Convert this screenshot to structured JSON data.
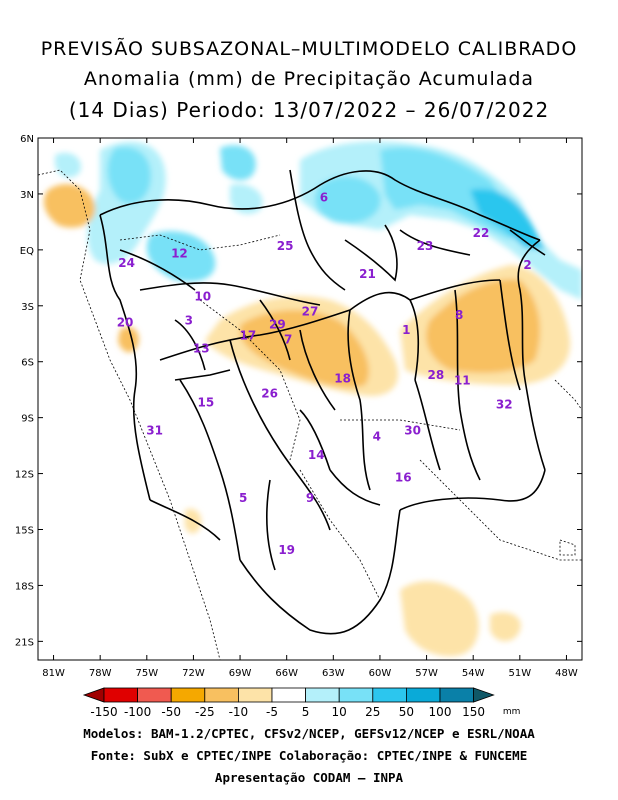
{
  "header": {
    "line1": "PREVISÃO SUBSAZONAL–MULTIMODELO CALIBRADO",
    "line2": "Anomalia (mm) de Precipitação Acumulada",
    "line3": "(14 Dias) Periodo: 13/07/2022 – 26/07/2022"
  },
  "map": {
    "lat_labels": [
      "6N",
      "3N",
      "EQ",
      "3S",
      "6S",
      "9S",
      "12S",
      "15S",
      "18S",
      "21S"
    ],
    "lon_labels": [
      "81W",
      "78W",
      "75W",
      "72W",
      "69W",
      "66W",
      "63W",
      "60W",
      "57W",
      "54W",
      "51W",
      "48W"
    ],
    "basin_labels": [
      {
        "id": "1",
        "lon": -58.3,
        "lat": -4.3
      },
      {
        "id": "2",
        "lon": -50.5,
        "lat": -0.8
      },
      {
        "id": "3",
        "lon": -72.3,
        "lat": -3.8
      },
      {
        "id": "4",
        "lon": -60.2,
        "lat": -10.0
      },
      {
        "id": "5",
        "lon": -68.8,
        "lat": -13.3
      },
      {
        "id": "6",
        "lon": -63.6,
        "lat": 2.8
      },
      {
        "id": "7",
        "lon": -65.9,
        "lat": -4.8
      },
      {
        "id": "8",
        "lon": -54.9,
        "lat": -3.5
      },
      {
        "id": "9",
        "lon": -64.5,
        "lat": -13.3
      },
      {
        "id": "10",
        "lon": -71.4,
        "lat": -2.5
      },
      {
        "id": "11",
        "lon": -54.7,
        "lat": -7.0
      },
      {
        "id": "12",
        "lon": -72.9,
        "lat": -0.2
      },
      {
        "id": "13",
        "lon": -71.5,
        "lat": -5.3
      },
      {
        "id": "14",
        "lon": -64.1,
        "lat": -11.0
      },
      {
        "id": "15",
        "lon": -71.2,
        "lat": -8.2
      },
      {
        "id": "16",
        "lon": -58.5,
        "lat": -12.2
      },
      {
        "id": "17",
        "lon": -68.5,
        "lat": -4.6
      },
      {
        "id": "18",
        "lon": -62.4,
        "lat": -6.9
      },
      {
        "id": "19",
        "lon": -66.0,
        "lat": -16.1
      },
      {
        "id": "20",
        "lon": -76.4,
        "lat": -3.9
      },
      {
        "id": "21",
        "lon": -60.8,
        "lat": -1.3
      },
      {
        "id": "22",
        "lon": -53.5,
        "lat": 0.9
      },
      {
        "id": "23",
        "lon": -57.1,
        "lat": 0.2
      },
      {
        "id": "24",
        "lon": -76.3,
        "lat": -0.7
      },
      {
        "id": "25",
        "lon": -66.1,
        "lat": 0.2
      },
      {
        "id": "26",
        "lon": -67.1,
        "lat": -7.7
      },
      {
        "id": "27",
        "lon": -64.5,
        "lat": -3.3
      },
      {
        "id": "28",
        "lon": -56.4,
        "lat": -6.7
      },
      {
        "id": "29",
        "lon": -66.6,
        "lat": -4.0
      },
      {
        "id": "30",
        "lon": -57.9,
        "lat": -9.7
      },
      {
        "id": "31",
        "lon": -74.5,
        "lat": -9.7
      },
      {
        "id": "32",
        "lon": -52.0,
        "lat": -8.3
      }
    ],
    "anomaly_areas": [
      {
        "sign": "positive",
        "level": 10,
        "region": "northern Amazon / Guiana highlands",
        "lon": -62,
        "lat": 3
      },
      {
        "sign": "positive",
        "level": 25,
        "region": "northeastern coast",
        "lon": -55,
        "lat": 3
      },
      {
        "sign": "positive",
        "level": 25,
        "region": "northwestern Amazon",
        "lon": -75,
        "lat": 4
      },
      {
        "sign": "negative",
        "level": -25,
        "region": "central Amazon",
        "lon": -65,
        "lat": -5
      },
      {
        "sign": "negative",
        "level": -25,
        "region": "eastern Amazon",
        "lon": -55,
        "lat": -5
      },
      {
        "sign": "negative",
        "level": -10,
        "region": "southeast",
        "lon": -57,
        "lat": -19
      }
    ],
    "colors": {
      "neg_150": "#a00000",
      "neg_100": "#e00000",
      "neg_50": "#f05a50",
      "neg_25": "#f5a800",
      "neg_10": "#f8c060",
      "neg_5": "#fde3a8",
      "neutral": "#ffffff",
      "pos_5": "#b4f0fa",
      "pos_10": "#78e1f7",
      "pos_25": "#2cc6ee",
      "pos_50": "#0aaad8",
      "pos_100": "#0a80a8",
      "pos_150": "#105868"
    }
  },
  "legend": {
    "ticks": [
      "-150",
      "-100",
      "-50",
      "-25",
      "-10",
      "-5",
      "5",
      "10",
      "25",
      "50",
      "100",
      "150"
    ],
    "unit": "mm"
  },
  "footer": {
    "line1": "Modelos: BAM-1.2/CPTEC, CFSv2/NCEP, GEFSv12/NCEP e ESRL/NOAA",
    "line2": "Fonte: SubX e CPTEC/INPE     Colaboração: CPTEC/INPE & FUNCEME",
    "line3": "Apresentação CODAM – INPA"
  }
}
